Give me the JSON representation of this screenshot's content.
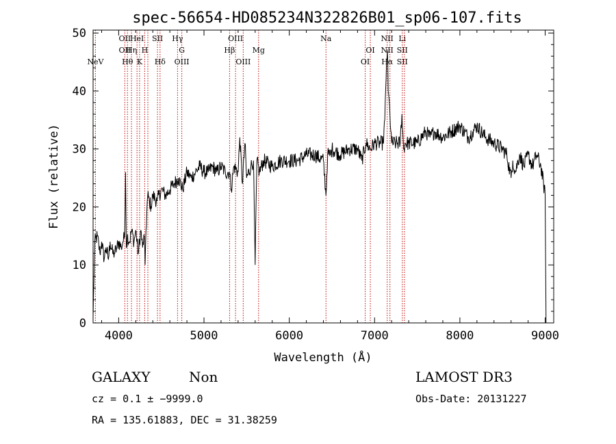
{
  "chart_data": {
    "type": "line",
    "title": "spec-56654-HD085234N322826B01_sp06-107.fits",
    "xlabel": "Wavelength (Å)",
    "ylabel": "Flux (relative)",
    "xlim": [
      3700,
      9100
    ],
    "ylim": [
      0,
      50.5
    ],
    "xticks": [
      4000,
      5000,
      6000,
      7000,
      8000,
      9000
    ],
    "yticks": [
      0,
      10,
      20,
      30,
      40,
      50
    ],
    "grid": false,
    "series": [
      {
        "values_x": [
          3700,
          3720,
          3750,
          3780,
          3800,
          3830,
          3850,
          3880,
          3900,
          3930,
          3950,
          3980,
          4000,
          4030,
          4050,
          4070,
          4080,
          4090,
          4100,
          4130,
          4150,
          4180,
          4200,
          4230,
          4260,
          4280,
          4300,
          4310,
          4320,
          4340,
          4360,
          4380,
          4400,
          4450,
          4500,
          4550,
          4600,
          4650,
          4700,
          4750,
          4800,
          4850,
          4900,
          4950,
          5000,
          5050,
          5100,
          5150,
          5200,
          5250,
          5300,
          5320,
          5350,
          5400,
          5420,
          5450,
          5480,
          5500,
          5550,
          5580,
          5600,
          5620,
          5650,
          5700,
          5800,
          5900,
          6000,
          6100,
          6200,
          6300,
          6400,
          6430,
          6450,
          6480,
          6500,
          6600,
          6700,
          6800,
          6850,
          6900,
          6950,
          7000,
          7050,
          7100,
          7120,
          7140,
          7150,
          7160,
          7180,
          7200,
          7250,
          7300,
          7320,
          7340,
          7360,
          7400,
          7500,
          7600,
          7650,
          7700,
          7800,
          7900,
          8000,
          8100,
          8150,
          8200,
          8300,
          8400,
          8500,
          8550,
          8600,
          8620,
          8650,
          8700,
          8750,
          8800,
          8850,
          8900,
          8950,
          9000,
          9010
        ],
        "values_y": [
          1,
          14,
          15,
          12,
          14,
          11,
          13,
          11,
          14,
          12,
          12,
          13,
          14,
          13,
          14,
          15,
          26,
          13,
          15,
          14,
          16,
          14,
          16,
          12,
          16,
          13,
          15,
          10,
          16,
          22,
          21,
          20,
          22,
          21,
          23,
          22,
          23,
          24,
          25,
          23,
          26,
          25,
          26,
          27,
          26,
          26,
          27,
          26,
          27,
          26,
          26,
          23,
          27,
          26,
          32,
          24,
          31,
          25,
          27,
          28,
          10,
          28,
          26,
          28,
          27,
          28,
          28,
          28,
          29,
          29,
          28,
          22,
          29,
          29,
          30,
          29,
          30,
          30,
          28,
          31,
          30,
          31,
          31,
          31,
          35,
          45,
          47,
          40,
          36,
          31,
          31,
          31,
          36,
          30,
          31,
          31,
          31,
          33,
          32,
          33,
          32,
          33,
          34,
          32,
          33,
          34,
          32,
          31,
          30,
          29,
          25,
          28,
          26,
          29,
          27,
          29,
          27,
          29,
          27,
          22,
          0
        ]
      }
    ],
    "lines": [
      {
        "w": 3727,
        "labels": [
          "NeV"
        ],
        "rows": [
          3
        ]
      },
      {
        "w": 4072,
        "labels": [
          "OII",
          "OII"
        ],
        "rows": [
          0,
          1
        ]
      },
      {
        "w": 4103,
        "labels": [
          "Hθ"
        ],
        "rows": [
          2
        ]
      },
      {
        "w": 4150,
        "labels": [
          "Hη"
        ],
        "rows": [
          1
        ]
      },
      {
        "w": 4215,
        "labels": [
          "HeI"
        ],
        "rows": [
          0
        ]
      },
      {
        "w": 4305,
        "labels": [
          "H"
        ],
        "rows": [
          1
        ]
      },
      {
        "w": 4245,
        "labels": [
          "K"
        ],
        "rows": [
          2
        ]
      },
      {
        "w": 4342,
        "labels": [],
        "rows": []
      },
      {
        "w": 4455,
        "labels": [
          "SII"
        ],
        "rows": [
          0
        ]
      },
      {
        "w": 4485,
        "labels": [
          "Hδ"
        ],
        "rows": [
          2
        ]
      },
      {
        "w": 4690,
        "labels": [
          "Hγ"
        ],
        "rows": [
          0
        ]
      },
      {
        "w": 4740,
        "labels": [
          "G",
          "OIII"
        ],
        "rows": [
          1,
          2
        ]
      },
      {
        "w": 5300,
        "labels": [
          "Hβ"
        ],
        "rows": [
          1
        ]
      },
      {
        "w": 5370,
        "labels": [
          "OIII"
        ],
        "rows": [
          0
        ]
      },
      {
        "w": 5460,
        "labels": [
          "OIII"
        ],
        "rows": [
          2
        ]
      },
      {
        "w": 5640,
        "labels": [
          "Mg"
        ],
        "rows": [
          1
        ]
      },
      {
        "w": 6430,
        "labels": [
          "Na"
        ],
        "rows": [
          0
        ]
      },
      {
        "w": 6890,
        "labels": [
          "OI"
        ],
        "rows": [
          2
        ]
      },
      {
        "w": 6950,
        "labels": [
          "OI"
        ],
        "rows": [
          1
        ]
      },
      {
        "w": 7148,
        "labels": [
          "NII",
          "NII",
          "Hα"
        ],
        "rows": [
          0,
          1,
          2
        ]
      },
      {
        "w": 7180,
        "labels": [],
        "rows": []
      },
      {
        "w": 7325,
        "labels": [
          "Li",
          "SII",
          "SII"
        ],
        "rows": [
          0,
          1,
          2
        ]
      },
      {
        "w": 7350,
        "labels": [],
        "rows": []
      }
    ]
  },
  "info": {
    "class": "GALAXY",
    "subclass": "Non",
    "cz": "cz = 0.1 ± −9999.0",
    "radec": "RA = 135.61883, DEC =  31.38259",
    "survey": "LAMOST DR3",
    "obsdate": "Obs-Date: 20131227"
  }
}
